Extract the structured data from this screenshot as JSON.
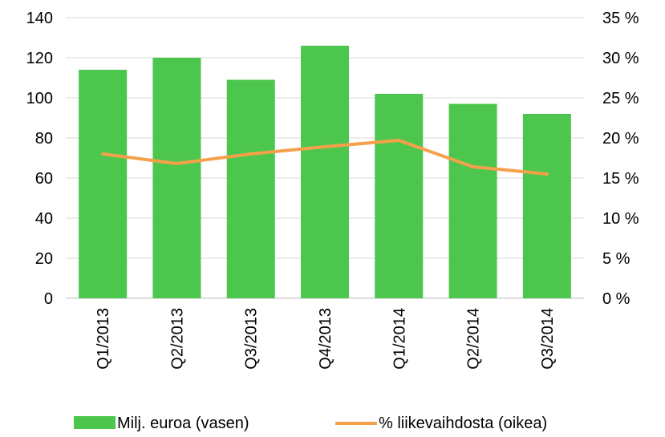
{
  "chart_data": {
    "type": "bar+line",
    "categories": [
      "Q1/2013",
      "Q2/2013",
      "Q3/2013",
      "Q4/2013",
      "Q1/2014",
      "Q2/2014",
      "Q3/2014"
    ],
    "series": [
      {
        "name": "Milj. euroa (vasen)",
        "type": "bar",
        "axis": "left",
        "color": "#4cc64c",
        "values": [
          114,
          120,
          109,
          126,
          102,
          97,
          92
        ]
      },
      {
        "name": "% liikevaihdosta (oikea)",
        "type": "line",
        "axis": "right",
        "color": "#f5a04a",
        "values": [
          18.0,
          16.8,
          18.0,
          18.9,
          19.7,
          16.4,
          15.5
        ]
      }
    ],
    "y_left": {
      "ylim": [
        0,
        140
      ],
      "ticks": [
        "0",
        "20",
        "40",
        "60",
        "80",
        "100",
        "120",
        "140"
      ]
    },
    "y_right": {
      "ylim": [
        0,
        35
      ],
      "ticks": [
        "0 %",
        "5 %",
        "10 %",
        "15 %",
        "20 %",
        "25 %",
        "30 %",
        "35 %"
      ]
    },
    "grid": true,
    "legend": "bottom",
    "gridline_color": "#d9d9d9"
  }
}
